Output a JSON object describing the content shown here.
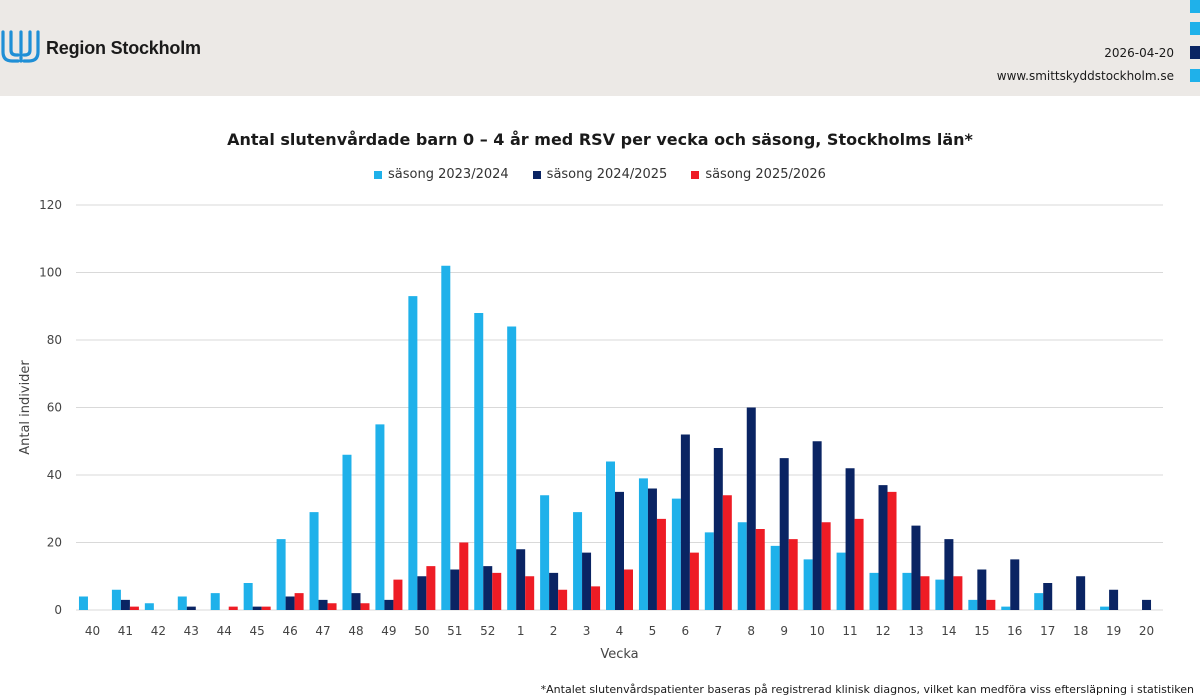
{
  "header": {
    "brand": "Region Stockholm",
    "date": "2026-04-20",
    "url": "www.smittskyddstockholm.se"
  },
  "colors": {
    "header_bg": "#ece9e6",
    "series": [
      "#1fb1ea",
      "#0a2463",
      "#ee1c25"
    ],
    "logo": "#1f8fd6"
  },
  "footnote": "*Antalet slutenvårdspatienter baseras på registrerad klinisk diagnos, vilket kan medföra viss eftersläpning i statistiken",
  "chart_data": {
    "type": "bar",
    "title": "Antal slutenvårdade barn 0 – 4 år med RSV per vecka och säsong, Stockholms län*",
    "xlabel": "Vecka",
    "ylabel": "Antal individer",
    "ylim": [
      0,
      120
    ],
    "yticks": [
      0,
      20,
      40,
      60,
      80,
      100,
      120
    ],
    "grid": true,
    "legend_position": "top",
    "categories": [
      "40",
      "41",
      "42",
      "43",
      "44",
      "45",
      "46",
      "47",
      "48",
      "49",
      "50",
      "51",
      "52",
      "1",
      "2",
      "3",
      "4",
      "5",
      "6",
      "7",
      "8",
      "9",
      "10",
      "11",
      "12",
      "13",
      "14",
      "15",
      "16",
      "17",
      "18",
      "19",
      "20"
    ],
    "series": [
      {
        "name": "säsong 2023/2024",
        "values": [
          4,
          6,
          2,
          4,
          5,
          8,
          21,
          29,
          46,
          55,
          93,
          102,
          88,
          84,
          34,
          29,
          44,
          39,
          33,
          23,
          26,
          19,
          15,
          17,
          11,
          11,
          9,
          3,
          1,
          5,
          0,
          1,
          0
        ]
      },
      {
        "name": "säsong 2024/2025",
        "values": [
          0,
          3,
          0,
          1,
          0,
          1,
          4,
          3,
          5,
          3,
          10,
          12,
          13,
          18,
          11,
          17,
          35,
          36,
          52,
          48,
          60,
          45,
          50,
          42,
          37,
          25,
          21,
          12,
          15,
          8,
          10,
          6,
          3
        ]
      },
      {
        "name": "säsong 2025/2026",
        "values": [
          0,
          1,
          0,
          0,
          1,
          1,
          5,
          2,
          2,
          9,
          13,
          20,
          11,
          10,
          6,
          7,
          12,
          27,
          17,
          34,
          24,
          21,
          26,
          27,
          35,
          10,
          10,
          3,
          0,
          0,
          0,
          0,
          0
        ]
      }
    ]
  }
}
